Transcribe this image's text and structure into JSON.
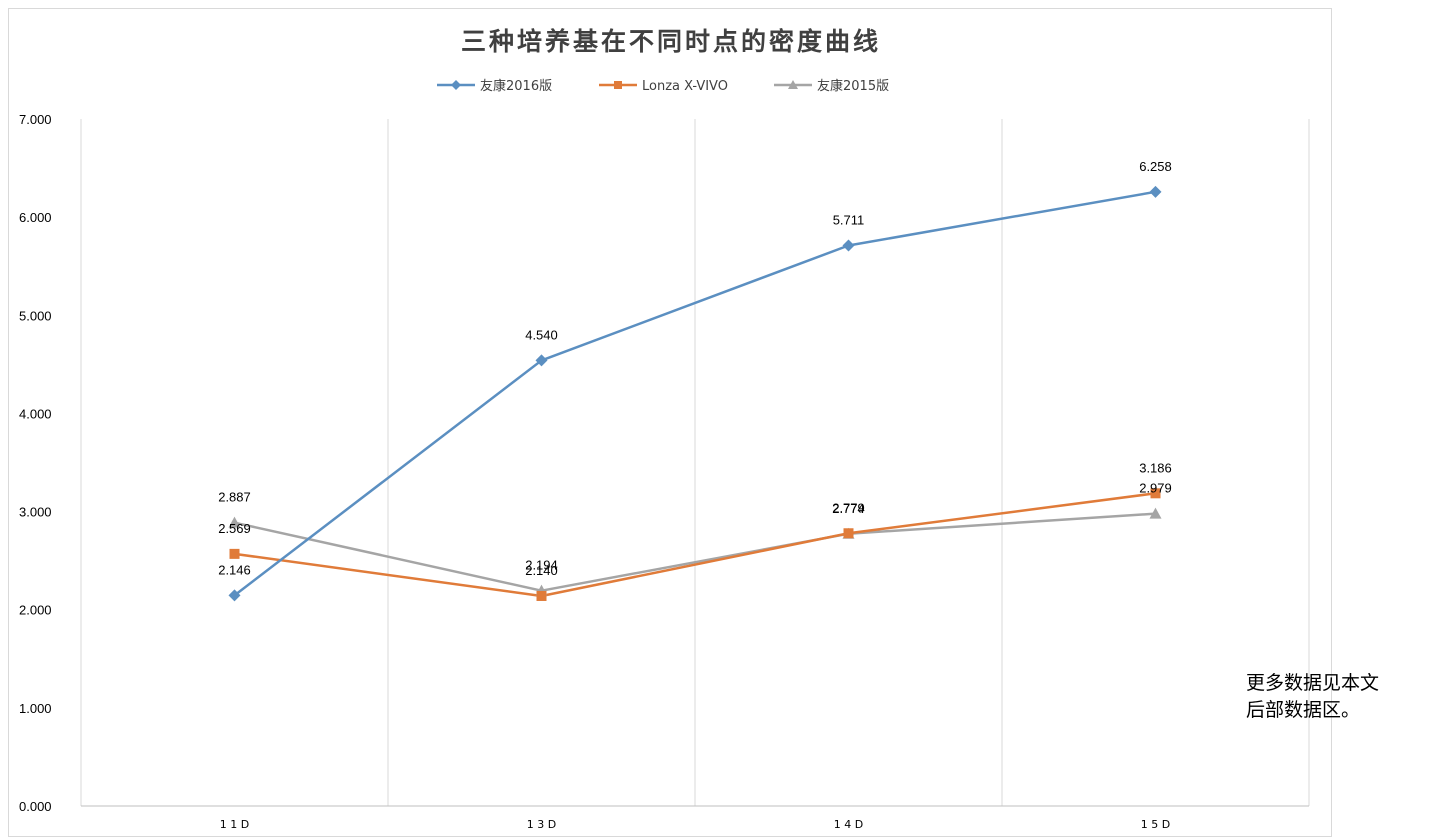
{
  "chart_data": {
    "type": "line",
    "title": "三种培养基在不同时点的密度曲线",
    "xlabel": "",
    "ylabel": "",
    "categories": [
      "11D",
      "13D",
      "14D",
      "15D"
    ],
    "tick_labels": [
      "1 1 D",
      "1 3 D",
      "1 4 D",
      "1 5 D"
    ],
    "ylim": [
      0,
      7
    ],
    "yticks": [
      "0.000",
      "1.000",
      "2.000",
      "3.000",
      "4.000",
      "5.000",
      "6.000",
      "7.000"
    ],
    "grid": "vertical",
    "legend": "top",
    "series": [
      {
        "name": "友康2016版",
        "values": [
          2.146,
          4.54,
          5.711,
          6.258
        ],
        "labels": [
          "2.146",
          "4.540",
          "5.711",
          "6.258"
        ],
        "color": "#5b8fc1",
        "marker": "diamond"
      },
      {
        "name": "Lonza X-VIVO",
        "values": [
          2.569,
          2.14,
          2.779,
          3.186
        ],
        "labels": [
          "2.569",
          "2.140",
          "2.779",
          "3.186"
        ],
        "color": "#e07b39",
        "marker": "square"
      },
      {
        "name": "友康2015版",
        "values": [
          2.887,
          2.194,
          2.774,
          2.979
        ],
        "labels": [
          "2.887",
          "2.194",
          "2.774",
          "2.979"
        ],
        "color": "#a5a5a5",
        "marker": "triangle"
      }
    ]
  },
  "note": {
    "line1": "更多数据见本文",
    "line2": "后部数据区。"
  }
}
